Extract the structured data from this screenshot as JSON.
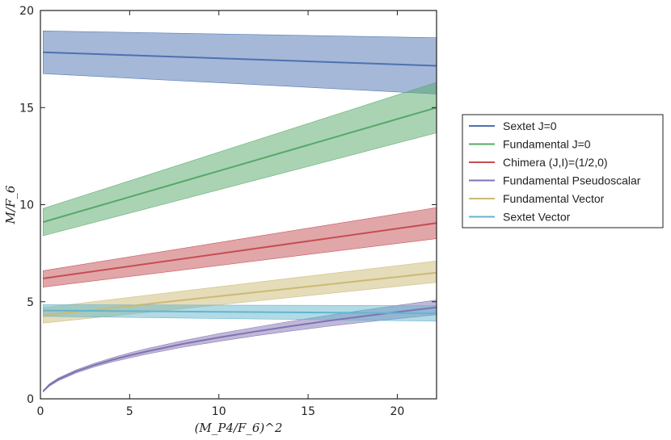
{
  "chart_data": {
    "type": "line",
    "title": "",
    "xlabel": "(M_P4/F_6)^2",
    "ylabel": "M/F_6",
    "xlim": [
      0,
      22.2
    ],
    "ylim": [
      0,
      20
    ],
    "xticks": [
      0,
      5,
      10,
      15,
      20
    ],
    "yticks": [
      0,
      5,
      10,
      15,
      20
    ],
    "legend_position": "right",
    "series": [
      {
        "name": "Sextet J=0",
        "color": "#4c72b0",
        "x": [
          0.15,
          22.2
        ],
        "values": [
          17.85,
          17.15
        ],
        "lower": [
          16.75,
          15.7
        ],
        "upper": [
          18.95,
          18.6
        ]
      },
      {
        "name": "Fundamental J=0",
        "color": "#55a868",
        "x": [
          0.15,
          22.2
        ],
        "values": [
          9.1,
          15.0
        ],
        "lower": [
          8.4,
          13.7
        ],
        "upper": [
          9.8,
          16.3
        ]
      },
      {
        "name": "Chimera (J,I)=(1/2,0)",
        "color": "#c44e52",
        "x": [
          0.15,
          22.2
        ],
        "values": [
          6.2,
          9.05
        ],
        "lower": [
          5.75,
          8.25
        ],
        "upper": [
          6.6,
          9.85
        ]
      },
      {
        "name": "Fundamental Pseudoscalar",
        "color": "#8172b2",
        "x": [
          0.15,
          0.5,
          1,
          2,
          3,
          4,
          5,
          6,
          8,
          10,
          12,
          14,
          16,
          18,
          20,
          22.2
        ],
        "values": [
          0.39,
          0.71,
          1.0,
          1.41,
          1.73,
          2.0,
          2.24,
          2.45,
          2.83,
          3.16,
          3.46,
          3.74,
          4.0,
          4.24,
          4.47,
          4.71
        ],
        "lower": [
          0.35,
          0.65,
          0.93,
          1.33,
          1.64,
          1.89,
          2.11,
          2.31,
          2.66,
          2.96,
          3.24,
          3.49,
          3.72,
          3.93,
          4.13,
          4.33
        ],
        "upper": [
          0.43,
          0.77,
          1.07,
          1.49,
          1.82,
          2.11,
          2.37,
          2.59,
          3.0,
          3.36,
          3.68,
          3.99,
          4.28,
          4.55,
          4.81,
          5.09
        ]
      },
      {
        "name": "Fundamental Vector",
        "color": "#ccb974",
        "x": [
          0.15,
          22.2
        ],
        "values": [
          4.3,
          6.5
        ],
        "lower": [
          3.9,
          6.0
        ],
        "upper": [
          4.7,
          7.1
        ]
      },
      {
        "name": "Sextet Vector",
        "color": "#64b5cd",
        "x": [
          0.15,
          22.2
        ],
        "values": [
          4.55,
          4.4
        ],
        "lower": [
          4.25,
          4.0
        ],
        "upper": [
          4.85,
          4.8
        ]
      }
    ]
  }
}
